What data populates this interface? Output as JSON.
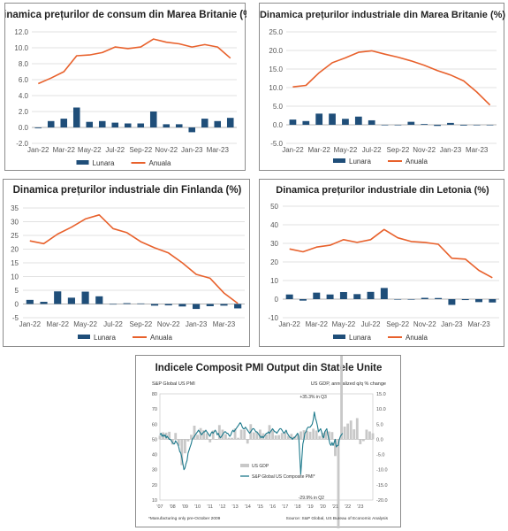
{
  "colors": {
    "bar": "#1f4e79",
    "line": "#e8612c",
    "grid": "#d9d9d9",
    "pmi": "#1e7a8c",
    "gdp": "#c8c8c8"
  },
  "chart_data": [
    {
      "type": "bar+line",
      "title": "Dinamica prețurilor de consum din Marea Britanie (%)",
      "categories": [
        "Jan-22",
        "Feb-22",
        "Mar-22",
        "Apr-22",
        "May-22",
        "Jun-22",
        "Jul-22",
        "Aug-22",
        "Sep-22",
        "Oct-22",
        "Nov-22",
        "Dec-22",
        "Jan-23",
        "Feb-23",
        "Mar-23",
        "Apr-23"
      ],
      "x_tick_labels": [
        "Jan-22",
        "Mar-22",
        "May-22",
        "Jul-22",
        "Sep-22",
        "Nov-22",
        "Jan-23",
        "Mar-23"
      ],
      "series": [
        {
          "name": "Lunara",
          "kind": "bar",
          "values": [
            -0.1,
            0.8,
            1.1,
            2.5,
            0.7,
            0.8,
            0.6,
            0.5,
            0.5,
            2.0,
            0.4,
            0.4,
            -0.6,
            1.1,
            0.8,
            1.2
          ]
        },
        {
          "name": "Anuala",
          "kind": "line",
          "values": [
            5.5,
            6.2,
            7.0,
            9.0,
            9.1,
            9.4,
            10.1,
            9.9,
            10.1,
            11.1,
            10.7,
            10.5,
            10.1,
            10.4,
            10.1,
            8.7
          ]
        }
      ],
      "ylim": [
        -2.0,
        12.0
      ],
      "yticks": [
        -2.0,
        0.0,
        2.0,
        4.0,
        6.0,
        8.0,
        10.0,
        12.0
      ],
      "ytick_labels": [
        "-2.0",
        "0.0",
        "2.0",
        "4.0",
        "6.0",
        "8.0",
        "10.0",
        "12.0"
      ],
      "legend": [
        "Lunara",
        "Anuala"
      ]
    },
    {
      "type": "bar+line",
      "title": "Dinamica prețurilor industriale din Marea Britanie (%)",
      "categories": [
        "Jan-22",
        "Feb-22",
        "Mar-22",
        "Apr-22",
        "May-22",
        "Jun-22",
        "Jul-22",
        "Aug-22",
        "Sep-22",
        "Oct-22",
        "Nov-22",
        "Dec-22",
        "Jan-23",
        "Feb-23",
        "Mar-23",
        "Apr-23"
      ],
      "x_tick_labels": [
        "Jan-22",
        "Mar-22",
        "May-22",
        "Jul-22",
        "Sep-22",
        "Nov-22",
        "Jan-23",
        "Mar-23"
      ],
      "series": [
        {
          "name": "Lunara",
          "kind": "bar",
          "values": [
            1.4,
            1.0,
            3.0,
            3.0,
            1.6,
            2.2,
            1.2,
            0.0,
            0.0,
            0.8,
            0.2,
            -0.3,
            0.5,
            -0.2,
            0.0,
            0.0
          ]
        },
        {
          "name": "Anuala",
          "kind": "line",
          "values": [
            10.2,
            10.6,
            14.0,
            16.7,
            18.0,
            19.5,
            19.9,
            19.0,
            18.2,
            17.2,
            16.0,
            14.6,
            13.4,
            11.8,
            8.8,
            5.3
          ]
        }
      ],
      "ylim": [
        -5.0,
        25.0
      ],
      "yticks": [
        -5.0,
        0.0,
        5.0,
        10.0,
        15.0,
        20.0,
        25.0
      ],
      "ytick_labels": [
        "-5.0",
        "0.0",
        "5.0",
        "10.0",
        "15.0",
        "20.0",
        "25.0"
      ],
      "legend": [
        "Lunara",
        "Anuala"
      ]
    },
    {
      "type": "bar+line",
      "title": "Dinamica prețurilor industriale din Finlanda (%)",
      "categories": [
        "Jan-22",
        "Feb-22",
        "Mar-22",
        "Apr-22",
        "May-22",
        "Jun-22",
        "Jul-22",
        "Aug-22",
        "Sep-22",
        "Oct-22",
        "Nov-22",
        "Dec-22",
        "Jan-23",
        "Feb-23",
        "Mar-23",
        "Apr-23"
      ],
      "x_tick_labels": [
        "Jan-22",
        "Mar-22",
        "May-22",
        "Jul-22",
        "Sep-22",
        "Nov-22",
        "Jan-23",
        "Mar-23"
      ],
      "series": [
        {
          "name": "Lunara",
          "kind": "bar",
          "values": [
            1.5,
            0.8,
            4.6,
            2.3,
            4.5,
            2.8,
            -0.1,
            0.3,
            0.2,
            -0.6,
            -0.5,
            -0.9,
            -1.8,
            -0.8,
            -0.6,
            -1.6
          ]
        },
        {
          "name": "Anuala",
          "kind": "line",
          "values": [
            23.0,
            22.0,
            25.5,
            28.0,
            31.0,
            32.5,
            27.5,
            26.0,
            22.7,
            20.5,
            18.6,
            15.0,
            10.8,
            9.4,
            4.0,
            0.2
          ]
        }
      ],
      "ylim": [
        -5,
        35
      ],
      "yticks": [
        -5,
        0,
        5,
        10,
        15,
        20,
        25,
        30,
        35
      ],
      "ytick_labels": [
        "-5",
        "0",
        "5",
        "10",
        "15",
        "20",
        "25",
        "30",
        "35"
      ],
      "legend": [
        "Lunara",
        "Anuala"
      ]
    },
    {
      "type": "bar+line",
      "title": "Dinamica prețurilor industriale din Letonia (%)",
      "categories": [
        "Jan-22",
        "Feb-22",
        "Mar-22",
        "Apr-22",
        "May-22",
        "Jun-22",
        "Jul-22",
        "Aug-22",
        "Sep-22",
        "Oct-22",
        "Nov-22",
        "Dec-22",
        "Jan-23",
        "Feb-23",
        "Mar-23",
        "Apr-23"
      ],
      "x_tick_labels": [
        "Jan-22",
        "Mar-22",
        "May-22",
        "Jul-22",
        "Sep-22",
        "Nov-22",
        "Jan-23",
        "Mar-23"
      ],
      "series": [
        {
          "name": "Lunara",
          "kind": "bar",
          "values": [
            2.5,
            -0.8,
            3.5,
            2.5,
            3.8,
            2.7,
            3.9,
            6.0,
            0.0,
            -0.3,
            0.7,
            0.6,
            -3.1,
            -0.5,
            -1.6,
            -1.8
          ]
        },
        {
          "name": "Anuala",
          "kind": "line",
          "values": [
            27.0,
            25.5,
            28.0,
            29.0,
            32.0,
            30.5,
            32.0,
            37.5,
            33.0,
            31.0,
            30.5,
            29.5,
            22.0,
            21.5,
            15.5,
            11.5
          ]
        }
      ],
      "ylim": [
        -10,
        50
      ],
      "yticks": [
        -10,
        0,
        10,
        20,
        30,
        40,
        50
      ],
      "ytick_labels": [
        "-10",
        "0",
        "10",
        "20",
        "30",
        "40",
        "50"
      ],
      "legend": [
        "Lunara",
        "Anuala"
      ]
    },
    {
      "type": "bar+line",
      "title": "Indicele Composit PMI Output din Statele Unite",
      "left_axis_label": "S&P Global US PMI",
      "right_axis_label": "US GDP, annualized q/q % change",
      "x_tick_labels": [
        "'07",
        "'08",
        "'09",
        "'10",
        "'11",
        "'12",
        "'13",
        "'14",
        "'15",
        "'16",
        "'17",
        "'18",
        "'19",
        "'20",
        "'21",
        "'22",
        "'23"
      ],
      "left_ylim": [
        10,
        80
      ],
      "left_yticks": [
        10,
        20,
        30,
        40,
        50,
        60,
        70,
        80
      ],
      "right_ylim": [
        -20,
        15
      ],
      "right_yticks": [
        -20.0,
        -15.0,
        -10.0,
        -5.0,
        0.0,
        5.0,
        10.0,
        15.0
      ],
      "right_ytick_labels": [
        "-20.0",
        "-15.0",
        "-10.0",
        "-5.0",
        "0.0",
        "5.0",
        "10.0",
        "15.0"
      ],
      "annotations": [
        "+35.3% in Q3",
        "-29.9% in Q2"
      ],
      "legend": [
        "US GDP",
        "S&P Global US Composite PMI*"
      ],
      "gdp_series": {
        "name": "US GDP",
        "start": 2007.0,
        "step": 0.25,
        "values": [
          1.2,
          2.3,
          2.2,
          2.5,
          -1.7,
          2.1,
          -2.1,
          -8.5,
          -4.6,
          -0.7,
          1.5,
          4.5,
          1.5,
          3.7,
          3.0,
          2.0,
          -1.0,
          2.9,
          -0.1,
          4.7,
          3.2,
          1.7,
          0.5,
          0.5,
          3.6,
          0.5,
          3.2,
          3.2,
          -1.4,
          5.0,
          2.3,
          2.3,
          3.2,
          2.0,
          1.6,
          4.7,
          3.2,
          1.3,
          1.4,
          2.1,
          2.4,
          1.2,
          1.8,
          1.0,
          1.7,
          2.6,
          3.0,
          2.8,
          2.5,
          3.5,
          2.9,
          1.1,
          2.2,
          2.7,
          2.6,
          2.4,
          -5.5,
          -29.9,
          35.3,
          4.2,
          5.2,
          6.2,
          3.3,
          7.0,
          -1.6,
          -0.6,
          3.2,
          2.6,
          2.0
        ]
      },
      "pmi_series": {
        "name": "S&P Global US Composite PMI*",
        "start": 2007.0,
        "step": 0.0833,
        "values": [
          53,
          54,
          52,
          53,
          52,
          53,
          51,
          52,
          51,
          50,
          50,
          49,
          48,
          47,
          47,
          49,
          48,
          47,
          45,
          42,
          41,
          38,
          34,
          30,
          31,
          34,
          36,
          41,
          43,
          45,
          47,
          50,
          51,
          52,
          53,
          54,
          55,
          56,
          55,
          54,
          53,
          54,
          55,
          55,
          56,
          55,
          54,
          53,
          52,
          54,
          55,
          54,
          55,
          56,
          55,
          53,
          54,
          52,
          51,
          52,
          53,
          54,
          55,
          55,
          54,
          54,
          53,
          52,
          53,
          55,
          56,
          55,
          56,
          57,
          58,
          59,
          60,
          61,
          60,
          58,
          57,
          57,
          58,
          57,
          56,
          55,
          54,
          55,
          56,
          57,
          57,
          56,
          55,
          55,
          54,
          53,
          52,
          51,
          52,
          51,
          52,
          53,
          54,
          54,
          55,
          54,
          55,
          56,
          57,
          56,
          55,
          55,
          54,
          55,
          56,
          57,
          57,
          56,
          55,
          54,
          55,
          56,
          54,
          53,
          52,
          51,
          51,
          50,
          51,
          51,
          52,
          53,
          54,
          52,
          40,
          27,
          37,
          47,
          50,
          54,
          55,
          57,
          58,
          58,
          58,
          59,
          60,
          63,
          68,
          64,
          62,
          59,
          55,
          56,
          57,
          55,
          52,
          51,
          55,
          56,
          57,
          53,
          50,
          47,
          46,
          48,
          46,
          48,
          50,
          45,
          46,
          46,
          50,
          52,
          53,
          54
        ]
      },
      "notes": [
        "*Manufacturing only pre-October 2009",
        "Source: S&P Global, US Bureau of Economic Analysis"
      ]
    }
  ]
}
